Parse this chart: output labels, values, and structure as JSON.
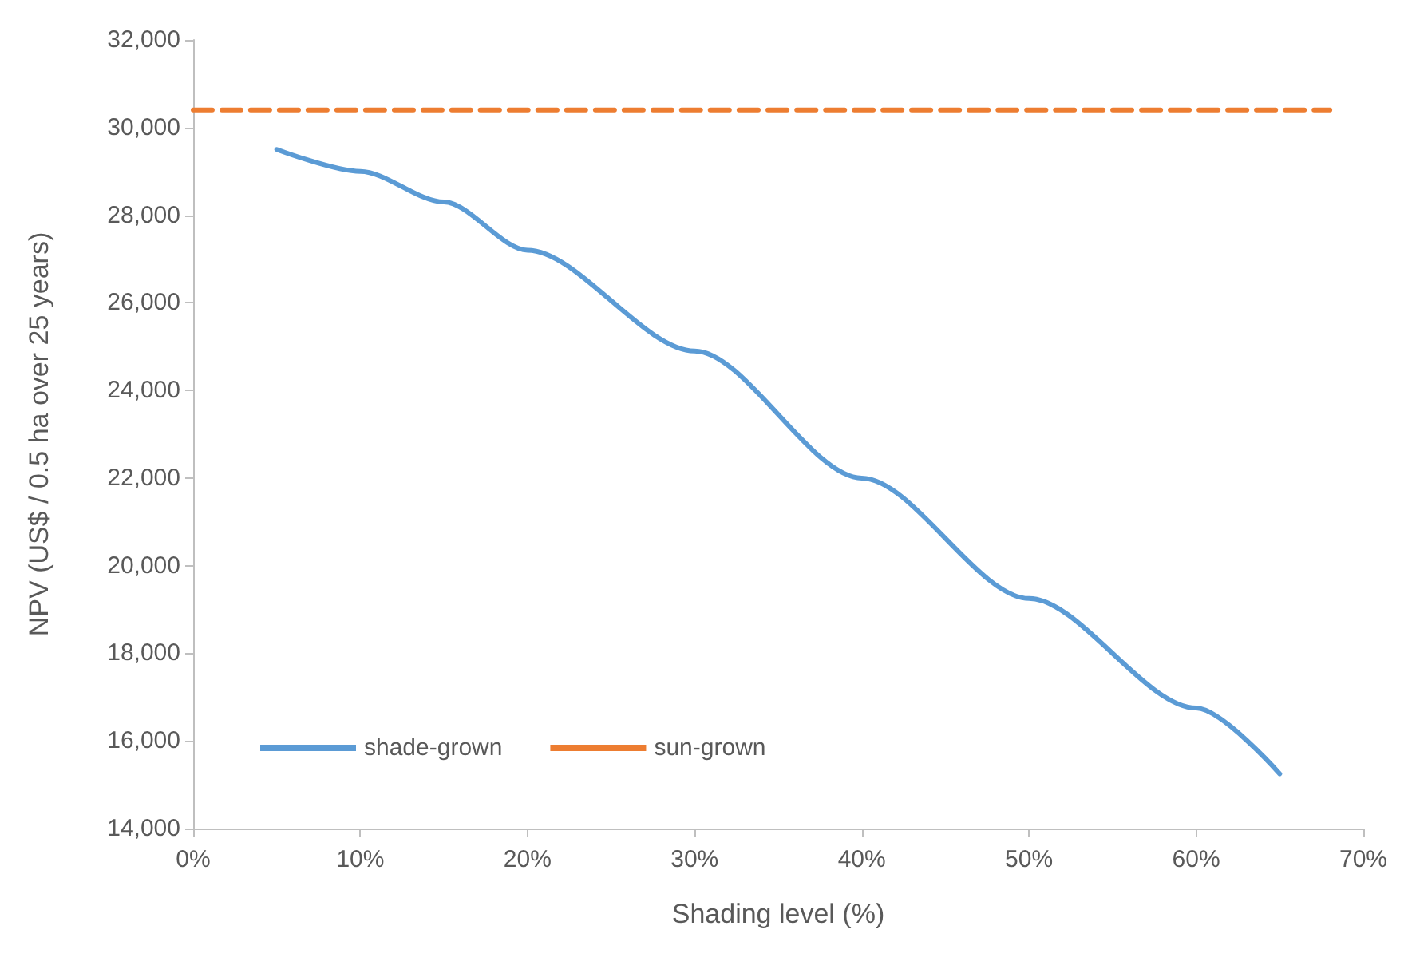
{
  "chart_data": {
    "type": "line",
    "xlabel": "Shading level (%)",
    "ylabel": "NPV (US$ / 0.5 ha over 25 years)",
    "xlim": [
      0,
      70
    ],
    "xticks": [
      {
        "value": 0,
        "label": "0%"
      },
      {
        "value": 10,
        "label": "10%"
      },
      {
        "value": 20,
        "label": "20%"
      },
      {
        "value": 30,
        "label": "30%"
      },
      {
        "value": 40,
        "label": "40%"
      },
      {
        "value": 50,
        "label": "50%"
      },
      {
        "value": 60,
        "label": "60%"
      },
      {
        "value": 70,
        "label": "70%"
      }
    ],
    "ylim": [
      14000,
      32000
    ],
    "yticks": [
      {
        "value": 14000,
        "label": "14,000"
      },
      {
        "value": 16000,
        "label": "16,000"
      },
      {
        "value": 18000,
        "label": "18,000"
      },
      {
        "value": 20000,
        "label": "20,000"
      },
      {
        "value": 22000,
        "label": "22,000"
      },
      {
        "value": 24000,
        "label": "24,000"
      },
      {
        "value": 26000,
        "label": "26,000"
      },
      {
        "value": 28000,
        "label": "28,000"
      },
      {
        "value": 30000,
        "label": "30,000"
      },
      {
        "value": 32000,
        "label": "32,000"
      }
    ],
    "grid": false,
    "legend": "bottom left",
    "marker": "none",
    "series": [
      {
        "name": "shade-grown",
        "color": "#5b9bd5",
        "line_style": "solid",
        "x": [
          5,
          10,
          15,
          20,
          30,
          40,
          50,
          60,
          65
        ],
        "values": [
          29500,
          29000,
          28300,
          27200,
          24900,
          22000,
          19250,
          16750,
          15250
        ]
      },
      {
        "name": "sun-grown",
        "color": "#ed7d31",
        "line_style": "dashed",
        "x": [
          0,
          68
        ],
        "values": [
          30400,
          30400
        ]
      }
    ]
  }
}
